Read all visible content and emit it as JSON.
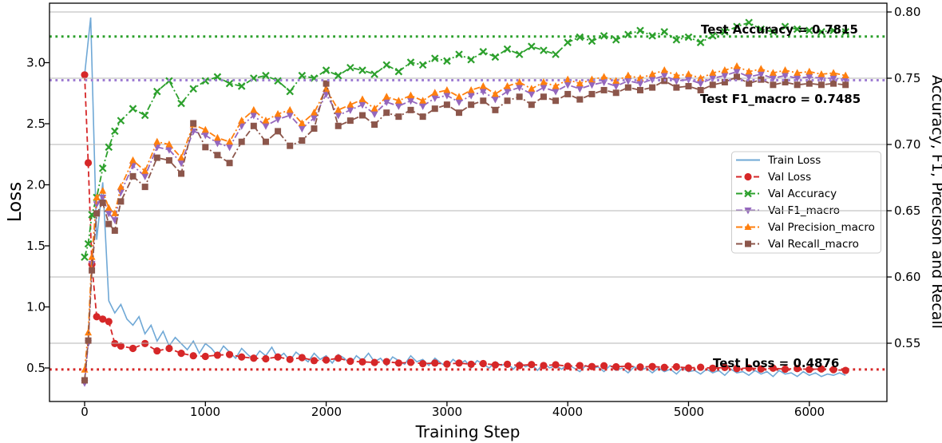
{
  "chart_data": {
    "type": "line",
    "title": "",
    "xlabel": "Training Step",
    "ylabel_left": "Loss",
    "ylabel_right": "Accuracy, F1, Precison and Recall",
    "x_ticks": [
      0,
      1000,
      2000,
      3000,
      4000,
      5000,
      6000
    ],
    "x_tick_labels": [
      "0",
      "1000",
      "2000",
      "3000",
      "4000",
      "5000",
      "6000"
    ],
    "left_yticks": [
      0.5,
      1.0,
      1.5,
      2.0,
      2.5,
      3.0
    ],
    "left_ytick_labels": [
      "0.5",
      "1.0",
      "1.5",
      "2.0",
      "2.5",
      "3.0"
    ],
    "right_yticks": [
      0.55,
      0.6,
      0.65,
      0.7,
      0.75,
      0.8
    ],
    "right_ytick_labels": [
      "0.55",
      "0.60",
      "0.65",
      "0.70",
      "0.75",
      "0.80"
    ],
    "xlim": [
      -290,
      6640
    ],
    "left_ylim": [
      0.23,
      3.49
    ],
    "right_ylim": [
      0.505,
      0.806
    ],
    "grid": "horizontal gridlines at right-axis ticks",
    "legend_position": "center right",
    "val_x": [
      0,
      30,
      60,
      100,
      150,
      200,
      250,
      300,
      400,
      500,
      600,
      700,
      800,
      900,
      1000,
      1100,
      1200,
      1300,
      1400,
      1500,
      1600,
      1700,
      1800,
      1900,
      2000,
      2100,
      2200,
      2300,
      2400,
      2500,
      2600,
      2700,
      2800,
      2900,
      3000,
      3100,
      3200,
      3300,
      3400,
      3500,
      3600,
      3700,
      3800,
      3900,
      4000,
      4100,
      4200,
      4300,
      4400,
      4500,
      4600,
      4700,
      4800,
      4900,
      5000,
      5100,
      5200,
      5300,
      5400,
      5500,
      5600,
      5700,
      5800,
      5900,
      6000,
      6100,
      6200,
      6300
    ],
    "series": [
      {
        "name": "Train Loss",
        "axis": "left",
        "color": "#6fa8d6",
        "linestyle": "solid",
        "marker": "none",
        "x_start": 0,
        "x_step": 50,
        "values": [
          2.9,
          3.37,
          1.55,
          2.02,
          1.05,
          0.95,
          1.02,
          0.9,
          0.85,
          0.92,
          0.78,
          0.85,
          0.72,
          0.8,
          0.68,
          0.75,
          0.7,
          0.65,
          0.72,
          0.62,
          0.7,
          0.66,
          0.6,
          0.68,
          0.63,
          0.58,
          0.66,
          0.61,
          0.57,
          0.64,
          0.6,
          0.67,
          0.58,
          0.62,
          0.56,
          0.63,
          0.59,
          0.55,
          0.62,
          0.57,
          0.6,
          0.54,
          0.61,
          0.58,
          0.53,
          0.6,
          0.56,
          0.62,
          0.55,
          0.58,
          0.52,
          0.59,
          0.56,
          0.53,
          0.6,
          0.55,
          0.57,
          0.52,
          0.58,
          0.54,
          0.51,
          0.57,
          0.53,
          0.56,
          0.5,
          0.56,
          0.53,
          0.5,
          0.55,
          0.52,
          0.54,
          0.49,
          0.55,
          0.51,
          0.53,
          0.48,
          0.54,
          0.5,
          0.52,
          0.49,
          0.53,
          0.5,
          0.47,
          0.52,
          0.49,
          0.51,
          0.47,
          0.52,
          0.48,
          0.5,
          0.46,
          0.51,
          0.48,
          0.5,
          0.46,
          0.5,
          0.47,
          0.49,
          0.45,
          0.5,
          0.47,
          0.48,
          0.45,
          0.49,
          0.46,
          0.48,
          0.44,
          0.49,
          0.46,
          0.47,
          0.44,
          0.48,
          0.45,
          0.47,
          0.43,
          0.48,
          0.45,
          0.46,
          0.43,
          0.47,
          0.44,
          0.46,
          0.43,
          0.45,
          0.44,
          0.46,
          0.44
        ]
      },
      {
        "name": "Val Loss",
        "axis": "left",
        "color": "#d62728",
        "linestyle": "dashed",
        "marker": "circle",
        "x_key": "val_x",
        "values": [
          2.9,
          2.18,
          1.35,
          0.92,
          0.9,
          0.88,
          0.7,
          0.68,
          0.66,
          0.7,
          0.64,
          0.66,
          0.62,
          0.6,
          0.595,
          0.605,
          0.61,
          0.59,
          0.58,
          0.575,
          0.59,
          0.57,
          0.585,
          0.56,
          0.565,
          0.58,
          0.555,
          0.55,
          0.545,
          0.552,
          0.54,
          0.546,
          0.535,
          0.54,
          0.532,
          0.54,
          0.53,
          0.536,
          0.525,
          0.53,
          0.52,
          0.528,
          0.52,
          0.526,
          0.515,
          0.52,
          0.512,
          0.518,
          0.51,
          0.516,
          0.508,
          0.512,
          0.505,
          0.51,
          0.5,
          0.506,
          0.498,
          0.504,
          0.495,
          0.5,
          0.492,
          0.498,
          0.49,
          0.495,
          0.488,
          0.492,
          0.486,
          0.48
        ]
      },
      {
        "name": "Val Accuracy",
        "axis": "right",
        "color": "#2ca02c",
        "linestyle": "dashdot",
        "marker": "x",
        "x_key": "val_x",
        "values": [
          0.615,
          0.625,
          0.647,
          0.66,
          0.682,
          0.698,
          0.71,
          0.718,
          0.727,
          0.722,
          0.74,
          0.748,
          0.731,
          0.742,
          0.748,
          0.751,
          0.746,
          0.744,
          0.75,
          0.752,
          0.748,
          0.74,
          0.752,
          0.75,
          0.756,
          0.752,
          0.758,
          0.756,
          0.753,
          0.76,
          0.755,
          0.762,
          0.76,
          0.765,
          0.763,
          0.768,
          0.764,
          0.77,
          0.766,
          0.772,
          0.768,
          0.774,
          0.771,
          0.768,
          0.777,
          0.781,
          0.778,
          0.782,
          0.779,
          0.783,
          0.786,
          0.782,
          0.785,
          0.779,
          0.781,
          0.777,
          0.782,
          0.785,
          0.789,
          0.792,
          0.787,
          0.785,
          0.789,
          0.787,
          0.786,
          0.785,
          0.786,
          0.785
        ]
      },
      {
        "name": "Val F1_macro",
        "axis": "right",
        "color": "#9467bd",
        "linestyle": "dashdot",
        "marker": "triangle-down",
        "x_key": "val_x",
        "values": [
          0.52,
          0.55,
          0.61,
          0.655,
          0.66,
          0.648,
          0.643,
          0.664,
          0.684,
          0.676,
          0.698,
          0.696,
          0.686,
          0.71,
          0.707,
          0.701,
          0.698,
          0.714,
          0.722,
          0.714,
          0.719,
          0.722,
          0.712,
          0.72,
          0.738,
          0.722,
          0.726,
          0.73,
          0.723,
          0.732,
          0.729,
          0.733,
          0.729,
          0.735,
          0.737,
          0.732,
          0.737,
          0.74,
          0.734,
          0.74,
          0.743,
          0.738,
          0.743,
          0.74,
          0.745,
          0.742,
          0.745,
          0.747,
          0.744,
          0.748,
          0.746,
          0.749,
          0.752,
          0.748,
          0.749,
          0.746,
          0.75,
          0.752,
          0.755,
          0.751,
          0.753,
          0.75,
          0.752,
          0.75,
          0.751,
          0.75,
          0.75,
          0.749
        ]
      },
      {
        "name": "Val Precision_macro",
        "axis": "right",
        "color": "#ff7f0e",
        "linestyle": "dashdot",
        "marker": "triangle-up",
        "x_key": "val_x",
        "values": [
          0.53,
          0.558,
          0.615,
          0.66,
          0.665,
          0.652,
          0.648,
          0.668,
          0.688,
          0.68,
          0.702,
          0.7,
          0.69,
          0.715,
          0.711,
          0.705,
          0.702,
          0.718,
          0.726,
          0.718,
          0.723,
          0.726,
          0.716,
          0.724,
          0.742,
          0.726,
          0.73,
          0.734,
          0.727,
          0.736,
          0.733,
          0.737,
          0.733,
          0.739,
          0.741,
          0.736,
          0.741,
          0.744,
          0.738,
          0.744,
          0.747,
          0.742,
          0.747,
          0.744,
          0.749,
          0.746,
          0.749,
          0.751,
          0.748,
          0.752,
          0.75,
          0.753,
          0.756,
          0.752,
          0.753,
          0.75,
          0.754,
          0.756,
          0.759,
          0.755,
          0.757,
          0.754,
          0.756,
          0.754,
          0.755,
          0.753,
          0.754,
          0.752
        ]
      },
      {
        "name": "Val Recall_macro",
        "axis": "right",
        "color": "#8c564b",
        "linestyle": "dashdot",
        "marker": "square",
        "x_key": "val_x",
        "values": [
          0.522,
          0.552,
          0.605,
          0.648,
          0.656,
          0.64,
          0.635,
          0.657,
          0.676,
          0.668,
          0.69,
          0.688,
          0.678,
          0.716,
          0.698,
          0.692,
          0.686,
          0.702,
          0.714,
          0.702,
          0.71,
          0.699,
          0.703,
          0.712,
          0.746,
          0.714,
          0.718,
          0.722,
          0.715,
          0.724,
          0.721,
          0.726,
          0.721,
          0.727,
          0.73,
          0.724,
          0.73,
          0.733,
          0.726,
          0.733,
          0.736,
          0.73,
          0.736,
          0.733,
          0.738,
          0.734,
          0.738,
          0.741,
          0.739,
          0.743,
          0.741,
          0.743,
          0.748,
          0.743,
          0.744,
          0.741,
          0.745,
          0.747,
          0.751,
          0.746,
          0.749,
          0.745,
          0.747,
          0.745,
          0.746,
          0.745,
          0.746,
          0.745
        ]
      }
    ],
    "ref_lines": [
      {
        "label": "Test Accuracy = 0.7815",
        "value": 0.7815,
        "axis": "right",
        "color": "#2ca02c"
      },
      {
        "label": "Test F1_macro = 0.7485",
        "value": 0.7485,
        "axis": "right",
        "color": "#9e7dd3"
      },
      {
        "label": "Test Loss = 0.4876",
        "value": 0.4876,
        "axis": "left",
        "color": "#d62728"
      }
    ],
    "colors": {
      "train_loss": "#6fa8d6",
      "val_loss": "#d62728",
      "val_accuracy": "#2ca02c",
      "val_f1": "#9467bd",
      "val_precision": "#ff7f0e",
      "val_recall": "#8c564b",
      "gridline": "#b4b4b4",
      "test_accuracy_line": "#2ca02c",
      "test_f1_line": "#9e7dd3",
      "test_loss_line": "#d62728"
    }
  }
}
